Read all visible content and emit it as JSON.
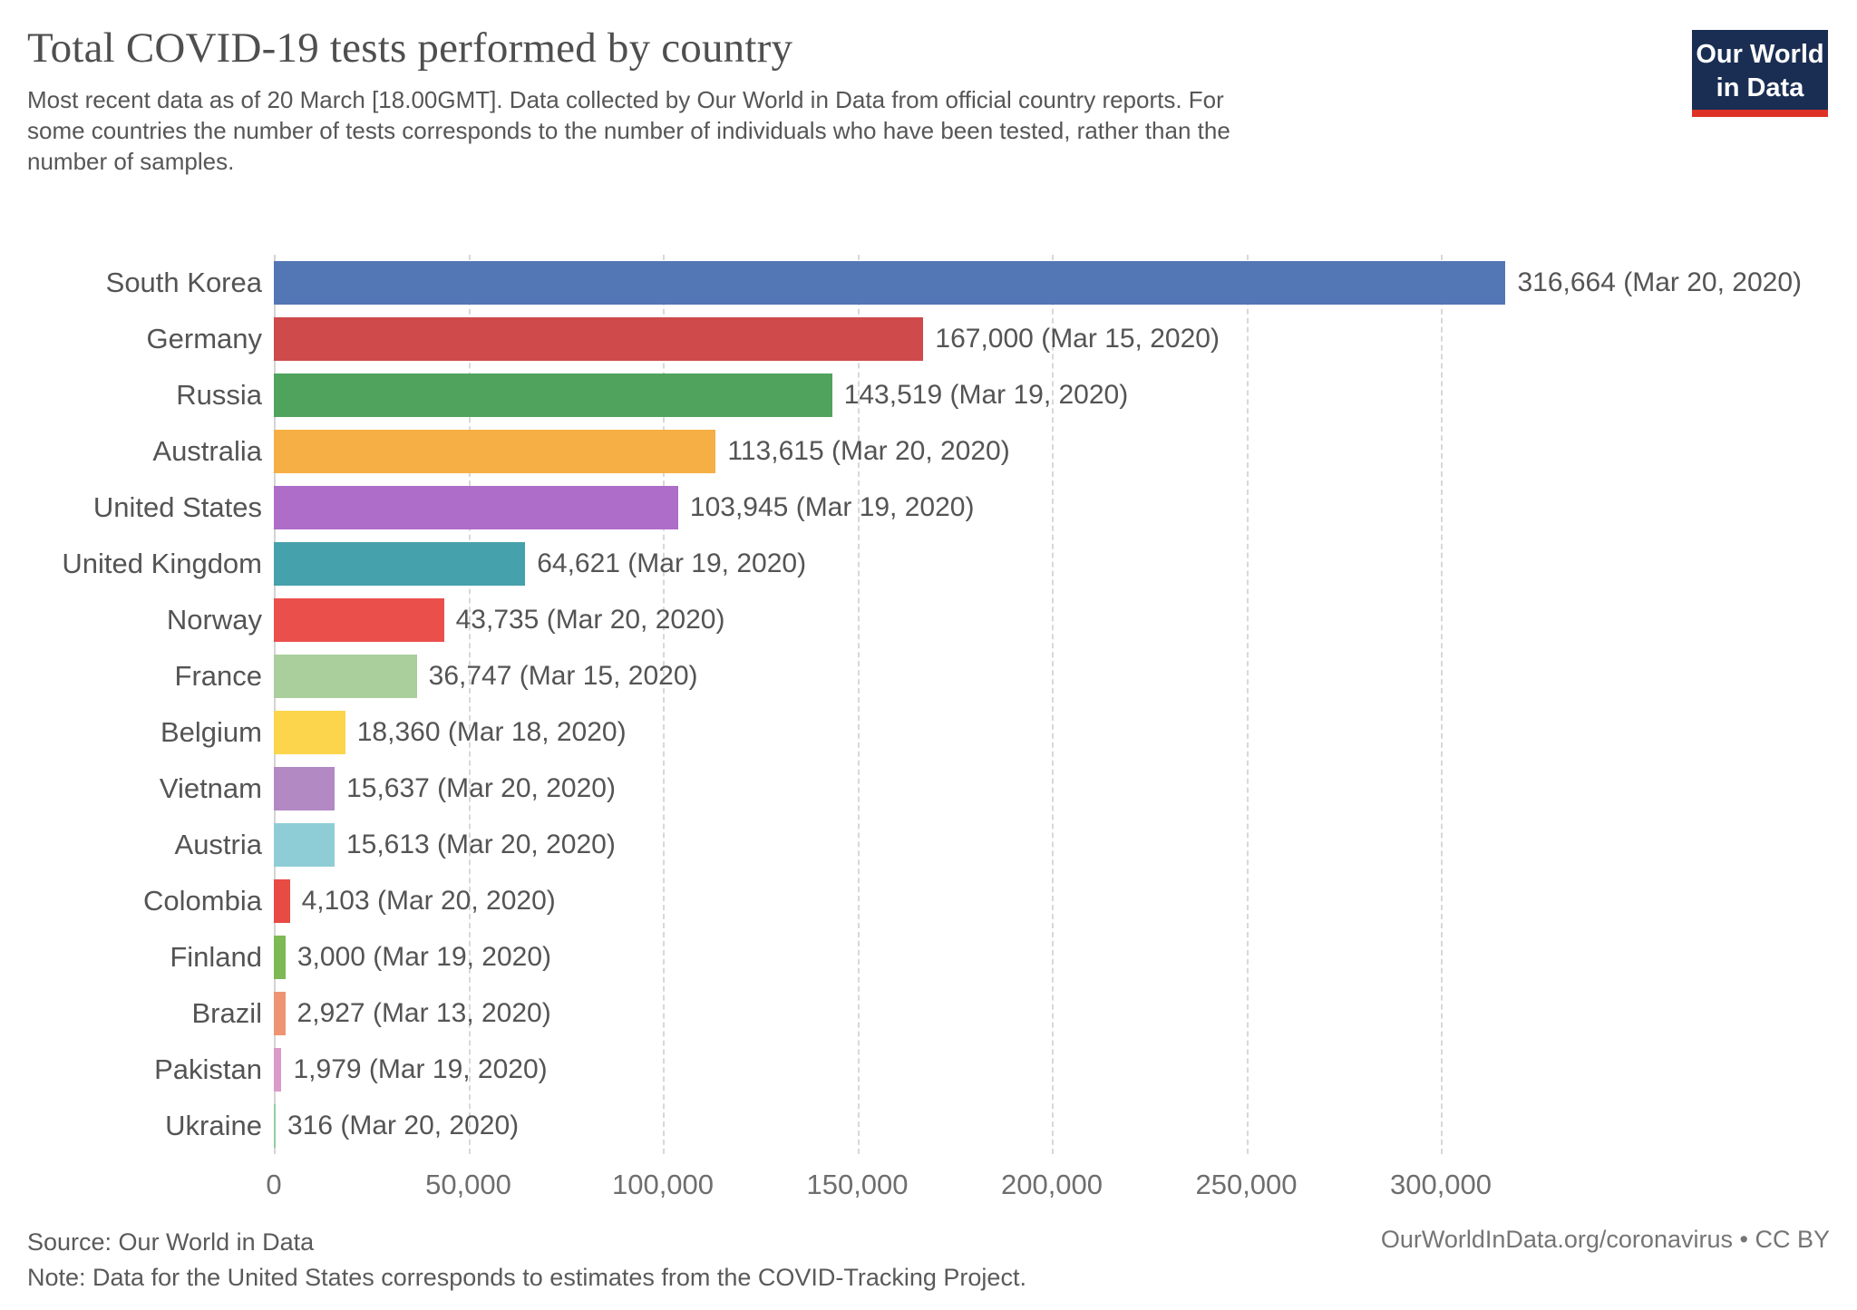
{
  "chart_data": {
    "type": "bar",
    "orientation": "horizontal",
    "title": "Total COVID-19 tests performed by country",
    "subtitle": "Most recent data as of 20 March [18.00GMT]. Data collected by Our World in Data from official country reports. For some countries the number of tests corresponds to the number of individuals who have been tested, rather than the number of samples.",
    "xlabel": "",
    "ylabel": "",
    "xlim": [
      0,
      400000
    ],
    "grid": "vertical-dashed",
    "legend": "none",
    "xticks": [
      {
        "value": 0,
        "label": "0"
      },
      {
        "value": 50000,
        "label": "50,000"
      },
      {
        "value": 100000,
        "label": "100,000"
      },
      {
        "value": 150000,
        "label": "150,000"
      },
      {
        "value": 200000,
        "label": "200,000"
      },
      {
        "value": 250000,
        "label": "250,000"
      },
      {
        "value": 300000,
        "label": "300,000"
      }
    ],
    "rows": [
      {
        "country": "South Korea",
        "value": 316664,
        "date": "Mar 20, 2020",
        "display": "316,664 (Mar 20, 2020)",
        "color": "#5377B5"
      },
      {
        "country": "Germany",
        "value": 167000,
        "date": "Mar 15, 2020",
        "display": "167,000 (Mar 15, 2020)",
        "color": "#CE4A4B"
      },
      {
        "country": "Russia",
        "value": 143519,
        "date": "Mar 19, 2020",
        "display": "143,519 (Mar 19, 2020)",
        "color": "#4FA35C"
      },
      {
        "country": "Australia",
        "value": 113615,
        "date": "Mar 20, 2020",
        "display": "113,615 (Mar 20, 2020)",
        "color": "#F6AF44"
      },
      {
        "country": "United States",
        "value": 103945,
        "date": "Mar 19, 2020",
        "display": "103,945 (Mar 19, 2020)",
        "color": "#AD6DC9"
      },
      {
        "country": "United Kingdom",
        "value": 64621,
        "date": "Mar 19, 2020",
        "display": "64,621 (Mar 19, 2020)",
        "color": "#45A1AB"
      },
      {
        "country": "Norway",
        "value": 43735,
        "date": "Mar 20, 2020",
        "display": "43,735 (Mar 20, 2020)",
        "color": "#EA4F4C"
      },
      {
        "country": "France",
        "value": 36747,
        "date": "Mar 15, 2020",
        "display": "36,747 (Mar 15, 2020)",
        "color": "#AACE9C"
      },
      {
        "country": "Belgium",
        "value": 18360,
        "date": "Mar 18, 2020",
        "display": "18,360 (Mar 18, 2020)",
        "color": "#FCD54C"
      },
      {
        "country": "Vietnam",
        "value": 15637,
        "date": "Mar 20, 2020",
        "display": "15,637 (Mar 20, 2020)",
        "color": "#B389C4"
      },
      {
        "country": "Austria",
        "value": 15613,
        "date": "Mar 20, 2020",
        "display": "15,613 (Mar 20, 2020)",
        "color": "#8FCDD6"
      },
      {
        "country": "Colombia",
        "value": 4103,
        "date": "Mar 20, 2020",
        "display": "4,103 (Mar 20, 2020)",
        "color": "#E84A44"
      },
      {
        "country": "Finland",
        "value": 3000,
        "date": "Mar 19, 2020",
        "display": "3,000 (Mar 19, 2020)",
        "color": "#7DB954"
      },
      {
        "country": "Brazil",
        "value": 2927,
        "date": "Mar 13, 2020",
        "display": "2,927 (Mar 13, 2020)",
        "color": "#EF9473"
      },
      {
        "country": "Pakistan",
        "value": 1979,
        "date": "Mar 19, 2020",
        "display": "1,979 (Mar 19, 2020)",
        "color": "#DA9BC9"
      },
      {
        "country": "Ukraine",
        "value": 316,
        "date": "Mar 20, 2020",
        "display": "316 (Mar 20, 2020)",
        "color": "#90CE9E"
      }
    ]
  },
  "logo": {
    "line1": "Our World",
    "line2": "in Data",
    "bg_color": "#1A2E54",
    "accent_color": "#DC3124"
  },
  "footer": {
    "source": "Source: Our World in Data",
    "note": "Note: Data for the United States corresponds to estimates from the COVID-Tracking Project.",
    "link": "OurWorldInData.org/coronavirus",
    "separator": "•",
    "license": "CC BY"
  }
}
